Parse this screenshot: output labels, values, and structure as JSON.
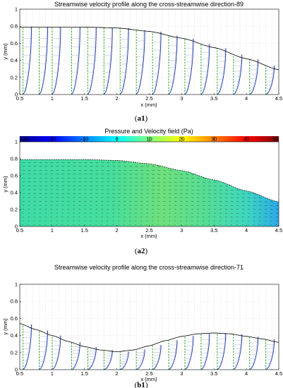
{
  "panels": [
    {
      "id": "a1",
      "caption": "(a1)",
      "caption_letter": "a1",
      "title": "Streamwise velocity profile along the cross-streamwise direction-89",
      "xlabel": "x (mm)",
      "ylabel": "y (mm)"
    },
    {
      "id": "a2",
      "caption": "(a2)",
      "caption_letter": "a2",
      "title": "Pressure and Velocity field (Pa)",
      "xlabel": "x (mm)",
      "ylabel": "y (mm)",
      "colorbar_ticks": [
        "-30",
        "-20",
        "-10",
        "0",
        "10",
        "20",
        "30",
        "40",
        "50"
      ]
    },
    {
      "id": "b1",
      "caption": "(b1)",
      "caption_letter": "b1",
      "title": "Streamwise velocity profile along the cross-streamwise direction-71",
      "xlabel": "x (mm)",
      "ylabel": "y (mm)"
    }
  ],
  "chart_data": [
    {
      "type": "line",
      "title": "Streamwise velocity profile along the cross-streamwise direction-89",
      "xlabel": "x (mm)",
      "ylabel": "y (mm)",
      "xlim": [
        0.5,
        4.5
      ],
      "ylim": [
        0,
        1
      ],
      "xticks": [
        "0.5",
        "1",
        "1.5",
        "2",
        "2.5",
        "3",
        "3.5",
        "4",
        "4.5"
      ],
      "yticks": [
        "0",
        "0.2",
        "0.4",
        "0.6",
        "0.8",
        "1"
      ],
      "grid": true,
      "wall_profile": {
        "x": [
          0.5,
          1.0,
          1.5,
          2.0,
          2.5,
          3.0,
          3.5,
          4.0,
          4.5
        ],
        "y": [
          0.79,
          0.79,
          0.79,
          0.78,
          0.74,
          0.66,
          0.55,
          0.42,
          0.29
        ]
      },
      "profile_stations_x": [
        0.55,
        0.8,
        1.0,
        1.3,
        1.55,
        1.8,
        2.05,
        2.3,
        2.55,
        2.8,
        3.05,
        3.3,
        3.55,
        3.8,
        4.05,
        4.3
      ],
      "colors": {
        "wall": "#000000",
        "profile": "#1f3fbf",
        "reference": "#1aa51a",
        "envelope": "#888888"
      }
    },
    {
      "type": "heatmap",
      "title": "Pressure and Velocity field (Pa)",
      "xlabel": "x (mm)",
      "ylabel": "y (mm)",
      "xlim": [
        0.5,
        4.5
      ],
      "ylim": [
        0,
        1
      ],
      "xticks": [
        "0.5",
        "1",
        "1.5",
        "2",
        "2.5",
        "3",
        "3.5",
        "4",
        "4.5"
      ],
      "yticks": [
        "0",
        "0.2",
        "0.4",
        "0.6",
        "0.8",
        "1"
      ],
      "colorbar": {
        "min": -30,
        "max": 50,
        "ticks": [
          -30,
          -20,
          -10,
          0,
          10,
          20,
          30,
          40,
          50
        ],
        "placement": "top"
      },
      "wall_profile": {
        "x": [
          0.5,
          1.0,
          1.5,
          2.0,
          2.5,
          3.0,
          3.5,
          4.0,
          4.5
        ],
        "y": [
          0.79,
          0.79,
          0.79,
          0.78,
          0.74,
          0.66,
          0.55,
          0.42,
          0.29
        ]
      },
      "field_value_range": [
        0,
        15
      ]
    },
    {
      "type": "line",
      "title": "Streamwise velocity profile along the cross-streamwise direction-71",
      "xlabel": "x (mm)",
      "ylabel": "y (mm)",
      "xlim": [
        0.5,
        4.5
      ],
      "ylim": [
        0,
        1
      ],
      "xticks": [
        "0.5",
        "1",
        "1.5",
        "2",
        "2.5",
        "3",
        "3.5",
        "4",
        "4.5"
      ],
      "yticks": [
        "0",
        "0.2",
        "0.4",
        "0.6",
        "0.8",
        "1"
      ],
      "grid": true,
      "wall_profile": {
        "x": [
          0.5,
          0.75,
          1.0,
          1.25,
          1.5,
          1.75,
          2.0,
          2.25,
          2.5,
          2.75,
          3.0,
          3.25,
          3.5,
          3.75,
          4.0,
          4.25,
          4.5
        ],
        "y": [
          0.54,
          0.47,
          0.4,
          0.33,
          0.27,
          0.23,
          0.21,
          0.23,
          0.28,
          0.34,
          0.39,
          0.42,
          0.43,
          0.42,
          0.39,
          0.36,
          0.32
        ]
      },
      "profile_stations_x": [
        0.55,
        0.8,
        1.0,
        1.3,
        1.55,
        1.8,
        2.05,
        2.3,
        2.55,
        2.8,
        3.05,
        3.3,
        3.55,
        3.8,
        4.05,
        4.3
      ],
      "colors": {
        "wall": "#000000",
        "profile": "#1f3fbf",
        "reference": "#1aa51a",
        "envelope": "#888888"
      }
    }
  ]
}
